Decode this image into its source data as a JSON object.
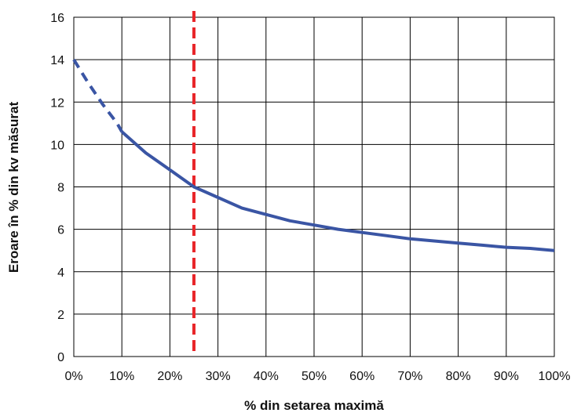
{
  "chart_data": {
    "type": "line",
    "title": "",
    "xlabel": "% din setarea maximă",
    "ylabel": "Eroare în % din kv măsurat",
    "x_ticks": [
      "0%",
      "10%",
      "20%",
      "30%",
      "40%",
      "50%",
      "60%",
      "70%",
      "80%",
      "90%",
      "100%"
    ],
    "y_ticks": [
      "0",
      "2",
      "4",
      "6",
      "8",
      "10",
      "12",
      "14",
      "16"
    ],
    "xlim": [
      0,
      100
    ],
    "ylim": [
      0,
      16
    ],
    "grid": true,
    "legend": "none",
    "series": [
      {
        "color": "#3a55a4",
        "style": "dashed",
        "x": [
          0,
          3,
          6,
          9,
          10
        ],
        "y": [
          14.0,
          12.9,
          11.9,
          11.0,
          10.6
        ]
      },
      {
        "color": "#3a55a4",
        "style": "solid",
        "x": [
          10,
          15,
          20,
          25,
          30,
          35,
          40,
          45,
          50,
          55,
          60,
          65,
          70,
          75,
          80,
          85,
          90,
          95,
          100
        ],
        "y": [
          10.6,
          9.6,
          8.8,
          8.0,
          7.5,
          7.0,
          6.7,
          6.4,
          6.2,
          6.0,
          5.85,
          5.7,
          5.55,
          5.45,
          5.35,
          5.25,
          5.15,
          5.1,
          5.0
        ]
      }
    ],
    "reference_lines": [
      {
        "axis": "x",
        "value": 25,
        "color": "#e8262a",
        "style": "dashed"
      }
    ]
  }
}
